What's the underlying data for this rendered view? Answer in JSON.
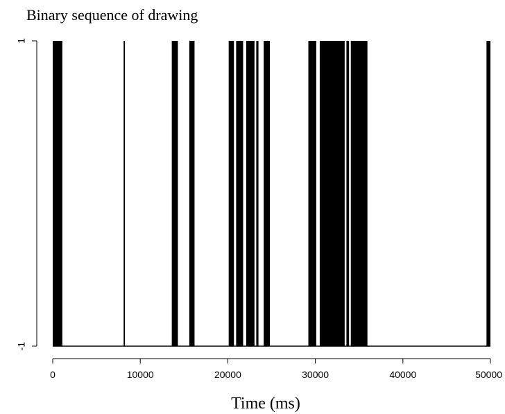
{
  "chart_data": {
    "type": "bar",
    "title": "Binary sequence of drawing",
    "xlabel": "Time (ms)",
    "ylabel": "",
    "xlim": [
      0,
      50000
    ],
    "ylim": [
      -1,
      1
    ],
    "x_ticks": [
      0,
      10000,
      20000,
      30000,
      40000,
      50000
    ],
    "y_ticks": [
      -1,
      1
    ],
    "baseline": -1,
    "high_value": 1,
    "grid": false,
    "legend": "none",
    "bar_color": "#000000",
    "high_intervals": [
      [
        0,
        1100
      ],
      [
        8100,
        8250
      ],
      [
        13600,
        14300
      ],
      [
        15600,
        16200
      ],
      [
        20100,
        20700
      ],
      [
        20950,
        21750
      ],
      [
        22100,
        23050
      ],
      [
        23250,
        23500
      ],
      [
        24100,
        24800
      ],
      [
        29200,
        30100
      ],
      [
        30500,
        33350
      ],
      [
        33550,
        33850
      ],
      [
        34050,
        35950
      ],
      [
        49550,
        50000
      ]
    ]
  }
}
